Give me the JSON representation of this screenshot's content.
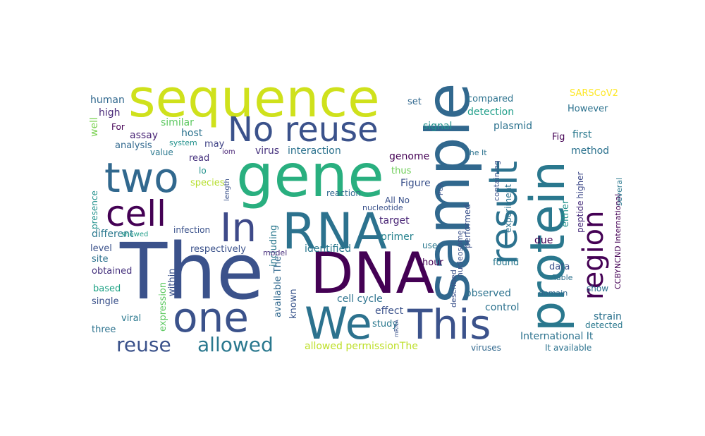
{
  "words": [
    {
      "text": "sequence",
      "color": "#cfe11c"
    },
    {
      "text": "gene",
      "color": "#29af7f"
    },
    {
      "text": "The",
      "color": "#3b528b"
    },
    {
      "text": "DNA",
      "color": "#440154"
    },
    {
      "text": "sample",
      "color": "#31688e"
    },
    {
      "text": "protein",
      "color": "#2a788e"
    },
    {
      "text": "RNA",
      "color": "#2c728e"
    },
    {
      "text": "two",
      "color": "#31688e"
    },
    {
      "text": "No reuse",
      "color": "#3b528b"
    },
    {
      "text": "In",
      "color": "#3e4a89"
    },
    {
      "text": "cell",
      "color": "#440154"
    },
    {
      "text": "one",
      "color": "#3b528b"
    },
    {
      "text": "We",
      "color": "#2c728e"
    },
    {
      "text": "This",
      "color": "#3b528b"
    },
    {
      "text": "result",
      "color": "#2c728e"
    },
    {
      "text": "region",
      "color": "#440154"
    },
    {
      "text": "reuse",
      "color": "#3b528b"
    },
    {
      "text": "allowed",
      "color": "#2a788e"
    },
    {
      "text": "human",
      "color": "#31688e"
    },
    {
      "text": "high",
      "color": "#482878"
    },
    {
      "text": "similar",
      "color": "#5ec962"
    },
    {
      "text": "well",
      "color": "#7ad151"
    },
    {
      "text": "For",
      "color": "#440154"
    },
    {
      "text": "assay",
      "color": "#482475"
    },
    {
      "text": "analysis",
      "color": "#31688e"
    },
    {
      "text": "system",
      "color": "#21918c"
    },
    {
      "text": "value",
      "color": "#2a788e"
    },
    {
      "text": "host",
      "color": "#2c728e"
    },
    {
      "text": "may",
      "color": "#414487"
    },
    {
      "text": "read",
      "color": "#46327e"
    },
    {
      "text": "lo",
      "color": "#21918c"
    },
    {
      "text": "species",
      "color": "#b5de2b"
    },
    {
      "text": "virus",
      "color": "#46327e"
    },
    {
      "text": "interaction",
      "color": "#2c728e"
    },
    {
      "text": "genome",
      "color": "#440154"
    },
    {
      "text": "thus",
      "color": "#6ece58"
    },
    {
      "text": "Figure",
      "color": "#3b528b"
    },
    {
      "text": "All No",
      "color": "#3b528b"
    },
    {
      "text": "nucleotide",
      "color": "#3b528b"
    },
    {
      "text": "target",
      "color": "#482475"
    },
    {
      "text": "primer",
      "color": "#26828e"
    },
    {
      "text": "identified",
      "color": "#2a788e"
    },
    {
      "text": "reaction",
      "color": "#31688e"
    },
    {
      "text": "including",
      "color": "#2a788e"
    },
    {
      "text": "available The",
      "color": "#31688e"
    },
    {
      "text": "model",
      "color": "#472d7b"
    },
    {
      "text": "respectively",
      "color": "#3b528b"
    },
    {
      "text": "infection",
      "color": "#3b528b"
    },
    {
      "text": "presence",
      "color": "#21918c"
    },
    {
      "text": "different",
      "color": "#2a788e"
    },
    {
      "text": "showed",
      "color": "#1f9e89"
    },
    {
      "text": "level",
      "color": "#3b528b"
    },
    {
      "text": "site",
      "color": "#2c728e"
    },
    {
      "text": "obtained",
      "color": "#46327e"
    },
    {
      "text": "based",
      "color": "#20a386"
    },
    {
      "text": "single",
      "color": "#3b528b"
    },
    {
      "text": "within",
      "color": "#3b528b"
    },
    {
      "text": "expression",
      "color": "#5ec962"
    },
    {
      "text": "viral",
      "color": "#2a788e"
    },
    {
      "text": "three",
      "color": "#2c728e"
    },
    {
      "text": "known",
      "color": "#39558c"
    },
    {
      "text": "cell cycle",
      "color": "#2c728e"
    },
    {
      "text": "effect",
      "color": "#3b528b"
    },
    {
      "text": "study",
      "color": "#2a788e"
    },
    {
      "text": "allowed permissionThe",
      "color": "#bddf26"
    },
    {
      "text": "compared",
      "color": "#2c728e"
    },
    {
      "text": "set",
      "color": "#31688e"
    },
    {
      "text": "detection",
      "color": "#1f9e89"
    },
    {
      "text": "signal",
      "color": "#21918c"
    },
    {
      "text": "plasmid",
      "color": "#2c728e"
    },
    {
      "text": "Fig",
      "color": "#440154"
    },
    {
      "text": "first",
      "color": "#2a788e"
    },
    {
      "text": "method",
      "color": "#2c728e"
    },
    {
      "text": "However",
      "color": "#2c728e"
    },
    {
      "text": "SARSCoV2",
      "color": "#fde725"
    },
    {
      "text": "The It",
      "color": "#2c728e"
    },
    {
      "text": "containing",
      "color": "#3b528b"
    },
    {
      "text": "experiment",
      "color": "#2c728e"
    },
    {
      "text": "peptide",
      "color": "#472d7b"
    },
    {
      "text": "higher",
      "color": "#3e4a89"
    },
    {
      "text": "performed",
      "color": "#3b528b"
    },
    {
      "text": "nucleosome",
      "color": "#3b528b"
    },
    {
      "text": "due",
      "color": "#440154"
    },
    {
      "text": "found",
      "color": "#2a788e"
    },
    {
      "text": "either",
      "color": "#21918c"
    },
    {
      "text": "use",
      "color": "#2a788e"
    },
    {
      "text": "hour",
      "color": "#440154"
    },
    {
      "text": "described",
      "color": "#3b528b"
    },
    {
      "text": "observed",
      "color": "#2c728e"
    },
    {
      "text": "control",
      "color": "#2c728e"
    },
    {
      "text": "data",
      "color": "#3b528b"
    },
    {
      "text": "Table",
      "color": "#2c728e"
    },
    {
      "text": "domain",
      "color": "#31688e"
    },
    {
      "text": "show",
      "color": "#2c728e"
    },
    {
      "text": "strain",
      "color": "#2c728e"
    },
    {
      "text": "detected",
      "color": "#2a788e"
    },
    {
      "text": "International It",
      "color": "#2c728e"
    },
    {
      "text": "viruses",
      "color": "#31688e"
    },
    {
      "text": "It available",
      "color": "#2c728e"
    },
    {
      "text": "CCBYNCND International",
      "color": "#440154"
    },
    {
      "text": "several",
      "color": "#2a788e"
    },
    {
      "text": "length",
      "color": "#3b528b"
    },
    {
      "text": "iom",
      "color": "#482475"
    },
    {
      "text": "PCR",
      "color": "#3b528b"
    },
    {
      "text": "mRNA",
      "color": "#3b528b"
    }
  ]
}
